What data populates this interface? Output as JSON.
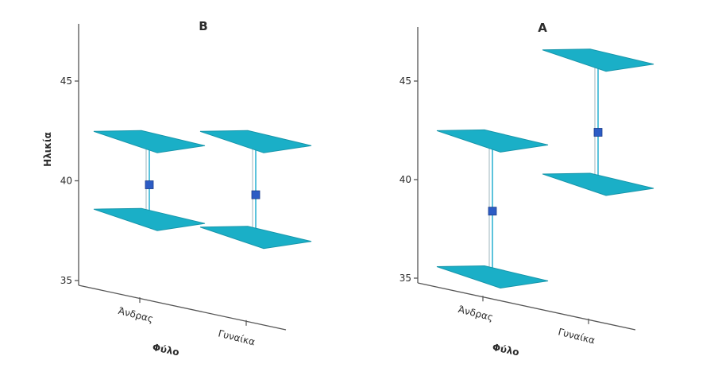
{
  "chart_data": {
    "type": "error-bar",
    "y_axis_label": "Ηλικία",
    "x_axis_label": "Φύλο",
    "y_ticks": [
      "35",
      "40",
      "45"
    ],
    "ylim": [
      35,
      47.5
    ],
    "categories": [
      "Άνδρας",
      "Γυναίκα"
    ],
    "panels": [
      {
        "title": "B",
        "points": [
          {
            "category": "Άνδρας",
            "mean": 39.8,
            "lower": 38.1,
            "upper": 42.0
          },
          {
            "category": "Γυναίκα",
            "mean": 39.3,
            "lower": 37.2,
            "upper": 42.0
          }
        ]
      },
      {
        "title": "A",
        "points": [
          {
            "category": "Άνδρας",
            "mean": 38.4,
            "lower": 35.1,
            "upper": 42.0
          },
          {
            "category": "Γυναίκα",
            "mean": 42.4,
            "lower": 39.8,
            "upper": 46.1
          }
        ]
      }
    ],
    "colors": {
      "cap_fill": "#1aafc7",
      "cap_stroke": "#1796ab",
      "bar_line": "#5cc3dc",
      "mean_marker": "#2c5cc5",
      "axis": "#555555"
    }
  }
}
